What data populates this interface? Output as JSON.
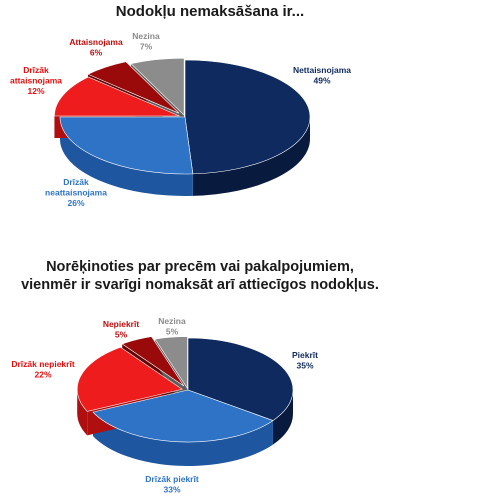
{
  "chart_data": [
    {
      "type": "pie",
      "title": "Nodokļu nemaksāšana ir...",
      "slices": [
        {
          "label": "Nettaisnojama",
          "label_lines": [
            "Nettaisnojama"
          ],
          "value": 49,
          "value_text": "49%",
          "color": "#0e2a5e",
          "side": "#081a3d",
          "label_color": "#0e2a5e"
        },
        {
          "label": "Drīzāk neattaisnojama",
          "label_lines": [
            "Drīzāk",
            "neattaisnojama"
          ],
          "value": 26,
          "value_text": "26%",
          "color": "#2f73c6",
          "side": "#1e56a0",
          "label_color": "#2f73c6"
        },
        {
          "label": "Drīzāk attaisnojama",
          "label_lines": [
            "Drīzāk",
            "attaisnojama"
          ],
          "value": 12,
          "value_text": "12%",
          "color": "#ee1c1c",
          "side": "#b00f0f",
          "label_color": "#e01010"
        },
        {
          "label": "Attaisnojama",
          "label_lines": [
            "Attaisnojama"
          ],
          "value": 6,
          "value_text": "6%",
          "color": "#9b0a0a",
          "side": "#650505",
          "label_color": "#c00d0d"
        },
        {
          "label": "Nezina",
          "label_lines": [
            "Nezina"
          ],
          "value": 7,
          "value_text": "7%",
          "color": "#8c8c8c",
          "side": "#5e5e5e",
          "label_color": "#8a8a8a"
        }
      ]
    },
    {
      "type": "pie",
      "title": "Norēķinoties par precēm vai pakalpojumiem, vienmēr ir svarīgi nomaksāt arī attiecīgos nodokļus.",
      "slices": [
        {
          "label": "Piekrīt",
          "label_lines": [
            "Piekrīt"
          ],
          "value": 35,
          "value_text": "35%",
          "color": "#0e2a5e",
          "side": "#081a3d",
          "label_color": "#0e2a5e"
        },
        {
          "label": "Drīzāk piekrīt",
          "label_lines": [
            "Drīzāk piekrīt"
          ],
          "value": 33,
          "value_text": "33%",
          "color": "#2f73c6",
          "side": "#1e56a0",
          "label_color": "#2f73c6"
        },
        {
          "label": "Drīzāk nepiekrīt",
          "label_lines": [
            "Drīzāk nepiekrīt"
          ],
          "value": 22,
          "value_text": "22%",
          "color": "#ee1c1c",
          "side": "#b00f0f",
          "label_color": "#e01010"
        },
        {
          "label": "Nepiekrīt",
          "label_lines": [
            "Nepiekrīt"
          ],
          "value": 5,
          "value_text": "5%",
          "color": "#9b0a0a",
          "side": "#650505",
          "label_color": "#c00d0d"
        },
        {
          "label": "Nezina",
          "label_lines": [
            "Nezina"
          ],
          "value": 5,
          "value_text": "5%",
          "color": "#8c8c8c",
          "side": "#5e5e5e",
          "label_color": "#8a8a8a"
        }
      ]
    }
  ]
}
